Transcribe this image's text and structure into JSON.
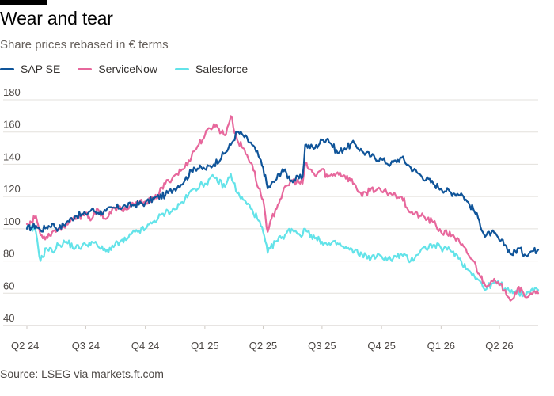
{
  "header": {
    "title": "Wear and tear",
    "subtitle": "Share prices rebased in € terms"
  },
  "footer": {
    "source": "Source: LSEG via markets.ft.com"
  },
  "colors": {
    "sap": "#0f5499",
    "servicenow": "#e7679c",
    "salesforce": "#63e3e9",
    "grid": "#e3e0dc",
    "axis_text": "#4d4845"
  },
  "chart_data": {
    "type": "line",
    "title": "Wear and tear",
    "subtitle": "Share prices rebased in € terms",
    "xlabel": "",
    "ylabel": "",
    "ylim": [
      40,
      180
    ],
    "yticks": [
      40,
      60,
      80,
      100,
      120,
      140,
      160,
      180
    ],
    "grid": true,
    "legend_position": "top-left",
    "x_start": "2024-04-01",
    "x_end": "2026-05-31",
    "xticks": [
      {
        "label": "Q2 24",
        "date": "2024-04-01"
      },
      {
        "label": "Q3 24",
        "date": "2024-07-01"
      },
      {
        "label": "Q4 24",
        "date": "2024-10-01"
      },
      {
        "label": "Q1 25",
        "date": "2025-01-01"
      },
      {
        "label": "Q2 25",
        "date": "2025-04-01"
      },
      {
        "label": "Q3 25",
        "date": "2025-07-01"
      },
      {
        "label": "Q4 25",
        "date": "2025-10-01"
      },
      {
        "label": "Q1 26",
        "date": "2026-01-01"
      },
      {
        "label": "Q2 26",
        "date": "2026-04-01"
      }
    ],
    "series": [
      {
        "name": "SAP SE",
        "color": "#0f5499",
        "points": [
          [
            "2024-04-01",
            100
          ],
          [
            "2024-04-08",
            101
          ],
          [
            "2024-04-15",
            102
          ],
          [
            "2024-04-22",
            99
          ],
          [
            "2024-05-01",
            101
          ],
          [
            "2024-05-10",
            103
          ],
          [
            "2024-05-20",
            100
          ],
          [
            "2024-06-01",
            104
          ],
          [
            "2024-06-15",
            108
          ],
          [
            "2024-07-01",
            109
          ],
          [
            "2024-07-10",
            112
          ],
          [
            "2024-07-20",
            110
          ],
          [
            "2024-08-01",
            111
          ],
          [
            "2024-08-15",
            113
          ],
          [
            "2024-09-01",
            114
          ],
          [
            "2024-09-15",
            115
          ],
          [
            "2024-10-01",
            116
          ],
          [
            "2024-10-15",
            119
          ],
          [
            "2024-11-01",
            121
          ],
          [
            "2024-11-15",
            125
          ],
          [
            "2024-12-01",
            130
          ],
          [
            "2024-12-15",
            138
          ],
          [
            "2025-01-01",
            137
          ],
          [
            "2025-01-15",
            140
          ],
          [
            "2025-02-01",
            147
          ],
          [
            "2025-02-10",
            152
          ],
          [
            "2025-02-20",
            160
          ],
          [
            "2025-03-01",
            158
          ],
          [
            "2025-03-15",
            152
          ],
          [
            "2025-03-25",
            145
          ],
          [
            "2025-04-01",
            138
          ],
          [
            "2025-04-08",
            125
          ],
          [
            "2025-04-20",
            130
          ],
          [
            "2025-05-01",
            137
          ],
          [
            "2025-05-15",
            130
          ],
          [
            "2025-06-01",
            132
          ],
          [
            "2025-06-05",
            152
          ],
          [
            "2025-06-20",
            150
          ],
          [
            "2025-07-01",
            155
          ],
          [
            "2025-07-10",
            156
          ],
          [
            "2025-07-25",
            147
          ],
          [
            "2025-08-05",
            150
          ],
          [
            "2025-08-20",
            153
          ],
          [
            "2025-09-01",
            148
          ],
          [
            "2025-09-15",
            145
          ],
          [
            "2025-10-01",
            143
          ],
          [
            "2025-10-15",
            140
          ],
          [
            "2025-11-01",
            144
          ],
          [
            "2025-11-15",
            138
          ],
          [
            "2025-12-01",
            133
          ],
          [
            "2025-12-20",
            128
          ],
          [
            "2026-01-01",
            125
          ],
          [
            "2026-01-20",
            122
          ],
          [
            "2026-02-01",
            122
          ],
          [
            "2026-02-10",
            117
          ],
          [
            "2026-02-20",
            112
          ],
          [
            "2026-03-01",
            105
          ],
          [
            "2026-03-10",
            95
          ],
          [
            "2026-03-20",
            98
          ],
          [
            "2026-04-01",
            93
          ],
          [
            "2026-04-10",
            90
          ],
          [
            "2026-04-20",
            84
          ],
          [
            "2026-05-01",
            88
          ],
          [
            "2026-05-10",
            84
          ],
          [
            "2026-05-20",
            86
          ],
          [
            "2026-05-31",
            87
          ]
        ]
      },
      {
        "name": "ServiceNow",
        "color": "#e7679c",
        "points": [
          [
            "2024-04-01",
            103
          ],
          [
            "2024-04-08",
            104
          ],
          [
            "2024-04-15",
            108
          ],
          [
            "2024-04-22",
            96
          ],
          [
            "2024-05-01",
            95
          ],
          [
            "2024-05-10",
            98
          ],
          [
            "2024-05-20",
            100
          ],
          [
            "2024-06-01",
            103
          ],
          [
            "2024-06-15",
            106
          ],
          [
            "2024-07-01",
            110
          ],
          [
            "2024-07-10",
            106
          ],
          [
            "2024-07-20",
            112
          ],
          [
            "2024-08-01",
            106
          ],
          [
            "2024-08-15",
            113
          ],
          [
            "2024-09-01",
            112
          ],
          [
            "2024-09-15",
            115
          ],
          [
            "2024-10-01",
            117
          ],
          [
            "2024-10-15",
            118
          ],
          [
            "2024-11-01",
            128
          ],
          [
            "2024-11-15",
            133
          ],
          [
            "2024-12-01",
            138
          ],
          [
            "2024-12-15",
            148
          ],
          [
            "2025-01-01",
            158
          ],
          [
            "2025-01-15",
            165
          ],
          [
            "2025-02-01",
            158
          ],
          [
            "2025-02-10",
            170
          ],
          [
            "2025-02-20",
            155
          ],
          [
            "2025-03-01",
            150
          ],
          [
            "2025-03-15",
            140
          ],
          [
            "2025-03-25",
            125
          ],
          [
            "2025-04-01",
            118
          ],
          [
            "2025-04-08",
            98
          ],
          [
            "2025-04-20",
            112
          ],
          [
            "2025-05-01",
            122
          ],
          [
            "2025-05-15",
            130
          ],
          [
            "2025-06-01",
            128
          ],
          [
            "2025-06-05",
            140
          ],
          [
            "2025-06-20",
            133
          ],
          [
            "2025-07-01",
            137
          ],
          [
            "2025-07-10",
            132
          ],
          [
            "2025-07-25",
            135
          ],
          [
            "2025-08-05",
            133
          ],
          [
            "2025-08-20",
            128
          ],
          [
            "2025-09-01",
            120
          ],
          [
            "2025-09-15",
            125
          ],
          [
            "2025-10-01",
            123
          ],
          [
            "2025-10-15",
            122
          ],
          [
            "2025-11-01",
            120
          ],
          [
            "2025-11-15",
            110
          ],
          [
            "2025-12-01",
            108
          ],
          [
            "2025-12-20",
            104
          ],
          [
            "2026-01-01",
            98
          ],
          [
            "2026-01-20",
            96
          ],
          [
            "2026-02-01",
            90
          ],
          [
            "2026-02-10",
            85
          ],
          [
            "2026-02-20",
            80
          ],
          [
            "2026-03-01",
            72
          ],
          [
            "2026-03-10",
            65
          ],
          [
            "2026-03-20",
            68
          ],
          [
            "2026-04-01",
            65
          ],
          [
            "2026-04-10",
            62
          ],
          [
            "2026-04-20",
            56
          ],
          [
            "2026-05-01",
            64
          ],
          [
            "2026-05-10",
            58
          ],
          [
            "2026-05-20",
            60
          ],
          [
            "2026-05-31",
            60
          ]
        ]
      },
      {
        "name": "Salesforce",
        "color": "#63e3e9",
        "points": [
          [
            "2024-04-01",
            101
          ],
          [
            "2024-04-08",
            100
          ],
          [
            "2024-04-15",
            98
          ],
          [
            "2024-04-22",
            80
          ],
          [
            "2024-05-01",
            88
          ],
          [
            "2024-05-10",
            86
          ],
          [
            "2024-05-20",
            90
          ],
          [
            "2024-06-01",
            92
          ],
          [
            "2024-06-15",
            88
          ],
          [
            "2024-07-01",
            90
          ],
          [
            "2024-07-10",
            92
          ],
          [
            "2024-07-20",
            89
          ],
          [
            "2024-08-01",
            86
          ],
          [
            "2024-08-15",
            90
          ],
          [
            "2024-09-01",
            93
          ],
          [
            "2024-09-15",
            98
          ],
          [
            "2024-10-01",
            100
          ],
          [
            "2024-10-15",
            105
          ],
          [
            "2024-11-01",
            110
          ],
          [
            "2024-11-15",
            112
          ],
          [
            "2024-12-01",
            118
          ],
          [
            "2024-12-15",
            125
          ],
          [
            "2025-01-01",
            128
          ],
          [
            "2025-01-15",
            132
          ],
          [
            "2025-02-01",
            126
          ],
          [
            "2025-02-10",
            134
          ],
          [
            "2025-02-20",
            122
          ],
          [
            "2025-03-01",
            118
          ],
          [
            "2025-03-15",
            112
          ],
          [
            "2025-03-25",
            105
          ],
          [
            "2025-04-01",
            98
          ],
          [
            "2025-04-08",
            85
          ],
          [
            "2025-04-20",
            92
          ],
          [
            "2025-05-01",
            95
          ],
          [
            "2025-05-15",
            100
          ],
          [
            "2025-06-01",
            96
          ],
          [
            "2025-06-05",
            100
          ],
          [
            "2025-06-20",
            94
          ],
          [
            "2025-07-01",
            92
          ],
          [
            "2025-07-10",
            90
          ],
          [
            "2025-07-25",
            91
          ],
          [
            "2025-08-05",
            88
          ],
          [
            "2025-08-20",
            86
          ],
          [
            "2025-09-01",
            84
          ],
          [
            "2025-09-15",
            82
          ],
          [
            "2025-10-01",
            83
          ],
          [
            "2025-10-15",
            81
          ],
          [
            "2025-11-01",
            84
          ],
          [
            "2025-11-15",
            80
          ],
          [
            "2025-12-01",
            87
          ],
          [
            "2025-12-20",
            90
          ],
          [
            "2026-01-01",
            88
          ],
          [
            "2026-01-20",
            86
          ],
          [
            "2026-02-01",
            80
          ],
          [
            "2026-02-10",
            75
          ],
          [
            "2026-02-20",
            72
          ],
          [
            "2026-03-01",
            68
          ],
          [
            "2026-03-10",
            62
          ],
          [
            "2026-03-20",
            66
          ],
          [
            "2026-04-01",
            66
          ],
          [
            "2026-04-10",
            63
          ],
          [
            "2026-04-20",
            62
          ],
          [
            "2026-05-01",
            60
          ],
          [
            "2026-05-10",
            59
          ],
          [
            "2026-05-20",
            62
          ],
          [
            "2026-05-31",
            62
          ]
        ]
      }
    ]
  }
}
